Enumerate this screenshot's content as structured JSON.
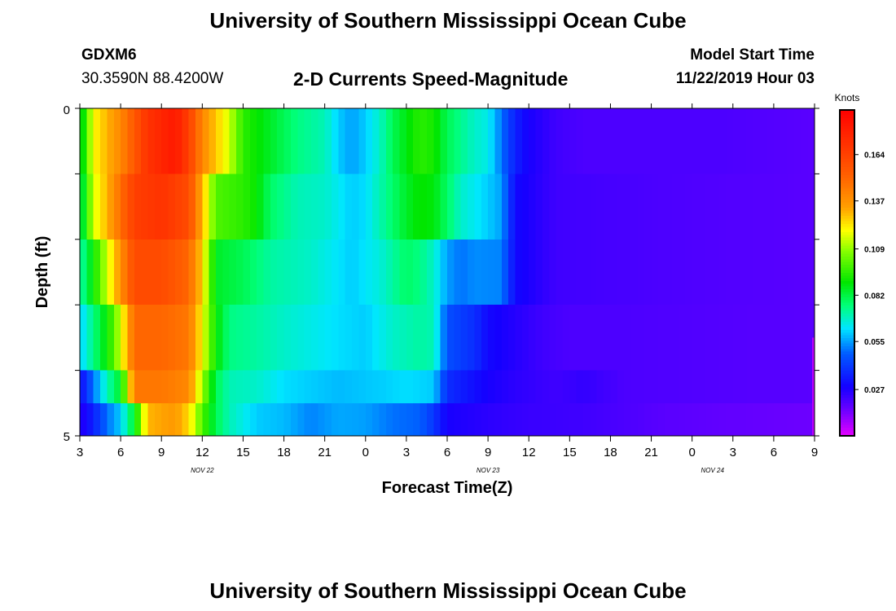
{
  "header": {
    "title": "University of Southern Mississippi Ocean Cube",
    "station_id": "GDXM6",
    "coordinates": "30.3590N 88.4200W",
    "subtitle": "2-D Currents Speed-Magnitude",
    "model_start_label": "Model Start Time",
    "model_start_value": "11/22/2019 Hour 03"
  },
  "footer": {
    "title": "University of Southern Mississippi Ocean Cube"
  },
  "chart_data": {
    "type": "heatmap",
    "xlabel": "Forecast Time(Z)",
    "ylabel": "Depth (ft)",
    "x_tick_labels": [
      "3",
      "6",
      "9",
      "12",
      "15",
      "18",
      "21",
      "0",
      "3",
      "6",
      "9",
      "12",
      "15",
      "18",
      "21",
      "0",
      "3",
      "6",
      "9"
    ],
    "date_labels": [
      {
        "label": "NOV 22",
        "tick_index": 3
      },
      {
        "label": "NOV 23",
        "tick_index": 10
      },
      {
        "label": "NOV 24",
        "tick_index": 15.5
      }
    ],
    "y_tick_labels": [
      "0",
      "5"
    ],
    "ylim": [
      0,
      5
    ],
    "x_hours": [
      3,
      57
    ],
    "colorbar": {
      "title": "Knots",
      "ticks": [
        "0.164",
        "0.137",
        "0.109",
        "0.082",
        "0.055",
        "0.027"
      ],
      "range": [
        0,
        0.19
      ]
    },
    "depth_rows": [
      0,
      1,
      2,
      3,
      4,
      4.75
    ],
    "row_breakpoints": [
      [
        [
          3,
          0.08
        ],
        [
          4,
          0.12
        ],
        [
          6,
          0.14
        ],
        [
          8,
          0.17
        ],
        [
          10,
          0.18
        ],
        [
          11,
          0.165
        ],
        [
          12,
          0.14
        ],
        [
          14,
          0.115
        ],
        [
          15,
          0.095
        ],
        [
          17,
          0.085
        ],
        [
          19,
          0.075
        ],
        [
          21,
          0.07
        ],
        [
          22,
          0.06
        ],
        [
          23,
          0.055
        ],
        [
          24,
          0.06
        ],
        [
          25,
          0.068
        ],
        [
          26,
          0.08
        ],
        [
          28,
          0.095
        ],
        [
          29,
          0.092
        ],
        [
          30,
          0.08
        ],
        [
          32,
          0.068
        ],
        [
          33,
          0.065
        ],
        [
          34,
          0.05
        ],
        [
          35,
          0.035
        ],
        [
          36,
          0.028
        ],
        [
          38,
          0.022
        ],
        [
          40,
          0.02
        ],
        [
          50,
          0.02
        ],
        [
          57,
          0.018
        ]
      ],
      [
        [
          3,
          0.075
        ],
        [
          4,
          0.115
        ],
        [
          5,
          0.13
        ],
        [
          7,
          0.165
        ],
        [
          9,
          0.17
        ],
        [
          11,
          0.16
        ],
        [
          12,
          0.13
        ],
        [
          13,
          0.1
        ],
        [
          15,
          0.095
        ],
        [
          16,
          0.09
        ],
        [
          17,
          0.078
        ],
        [
          19,
          0.07
        ],
        [
          21,
          0.068
        ],
        [
          23,
          0.06
        ],
        [
          24,
          0.062
        ],
        [
          25,
          0.07
        ],
        [
          27,
          0.085
        ],
        [
          28,
          0.09
        ],
        [
          29,
          0.088
        ],
        [
          30,
          0.078
        ],
        [
          31,
          0.068
        ],
        [
          33,
          0.06
        ],
        [
          34,
          0.055
        ],
        [
          35,
          0.03
        ],
        [
          38,
          0.022
        ],
        [
          46,
          0.02
        ],
        [
          57,
          0.018
        ]
      ],
      [
        [
          3,
          0.07
        ],
        [
          4,
          0.09
        ],
        [
          5,
          0.115
        ],
        [
          7,
          0.16
        ],
        [
          9,
          0.16
        ],
        [
          11,
          0.15
        ],
        [
          12,
          0.125
        ],
        [
          13,
          0.085
        ],
        [
          15,
          0.08
        ],
        [
          17,
          0.072
        ],
        [
          20,
          0.068
        ],
        [
          23,
          0.06
        ],
        [
          25,
          0.066
        ],
        [
          27,
          0.078
        ],
        [
          28,
          0.075
        ],
        [
          29,
          0.068
        ],
        [
          30,
          0.055
        ],
        [
          31,
          0.05
        ],
        [
          32,
          0.053
        ],
        [
          34,
          0.052
        ],
        [
          35,
          0.03
        ],
        [
          38,
          0.022
        ],
        [
          46,
          0.02
        ],
        [
          57,
          0.018
        ]
      ],
      [
        [
          3,
          0.06
        ],
        [
          4,
          0.075
        ],
        [
          5,
          0.09
        ],
        [
          6,
          0.115
        ],
        [
          7,
          0.15
        ],
        [
          9,
          0.15
        ],
        [
          11,
          0.145
        ],
        [
          12,
          0.12
        ],
        [
          13,
          0.09
        ],
        [
          14,
          0.075
        ],
        [
          16,
          0.072
        ],
        [
          18,
          0.068
        ],
        [
          22,
          0.062
        ],
        [
          24,
          0.06
        ],
        [
          26,
          0.068
        ],
        [
          28,
          0.072
        ],
        [
          29,
          0.07
        ],
        [
          30,
          0.045
        ],
        [
          32,
          0.038
        ],
        [
          33,
          0.03
        ],
        [
          35,
          0.026
        ],
        [
          37,
          0.022
        ],
        [
          39,
          0.02
        ],
        [
          43,
          0.02
        ],
        [
          57,
          0.018
        ]
      ],
      [
        [
          3,
          0.03
        ],
        [
          4,
          0.05
        ],
        [
          5,
          0.07
        ],
        [
          6,
          0.085
        ],
        [
          7,
          0.145
        ],
        [
          9,
          0.145
        ],
        [
          11,
          0.14
        ],
        [
          12,
          0.11
        ],
        [
          13,
          0.08
        ],
        [
          14,
          0.07
        ],
        [
          16,
          0.068
        ],
        [
          18,
          0.062
        ],
        [
          20,
          0.06
        ],
        [
          22,
          0.058
        ],
        [
          25,
          0.06
        ],
        [
          27,
          0.062
        ],
        [
          29,
          0.06
        ],
        [
          30,
          0.038
        ],
        [
          33,
          0.028
        ],
        [
          35,
          0.025
        ],
        [
          38,
          0.022
        ],
        [
          40,
          0.024
        ],
        [
          43,
          0.02
        ],
        [
          57,
          0.018
        ]
      ],
      [
        [
          3,
          0.025
        ],
        [
          4,
          0.035
        ],
        [
          5,
          0.05
        ],
        [
          6,
          0.06
        ],
        [
          7,
          0.085
        ],
        [
          8,
          0.13
        ],
        [
          10,
          0.135
        ],
        [
          11,
          0.125
        ],
        [
          12,
          0.1
        ],
        [
          13,
          0.08
        ],
        [
          14,
          0.07
        ],
        [
          16,
          0.06
        ],
        [
          18,
          0.058
        ],
        [
          20,
          0.052
        ],
        [
          22,
          0.056
        ],
        [
          24,
          0.055
        ],
        [
          26,
          0.05
        ],
        [
          28,
          0.048
        ],
        [
          29,
          0.04
        ],
        [
          30,
          0.028
        ],
        [
          33,
          0.025
        ],
        [
          36,
          0.023
        ],
        [
          40,
          0.022
        ],
        [
          43,
          0.02
        ],
        [
          46,
          0.018
        ],
        [
          57,
          0.015
        ]
      ]
    ]
  }
}
